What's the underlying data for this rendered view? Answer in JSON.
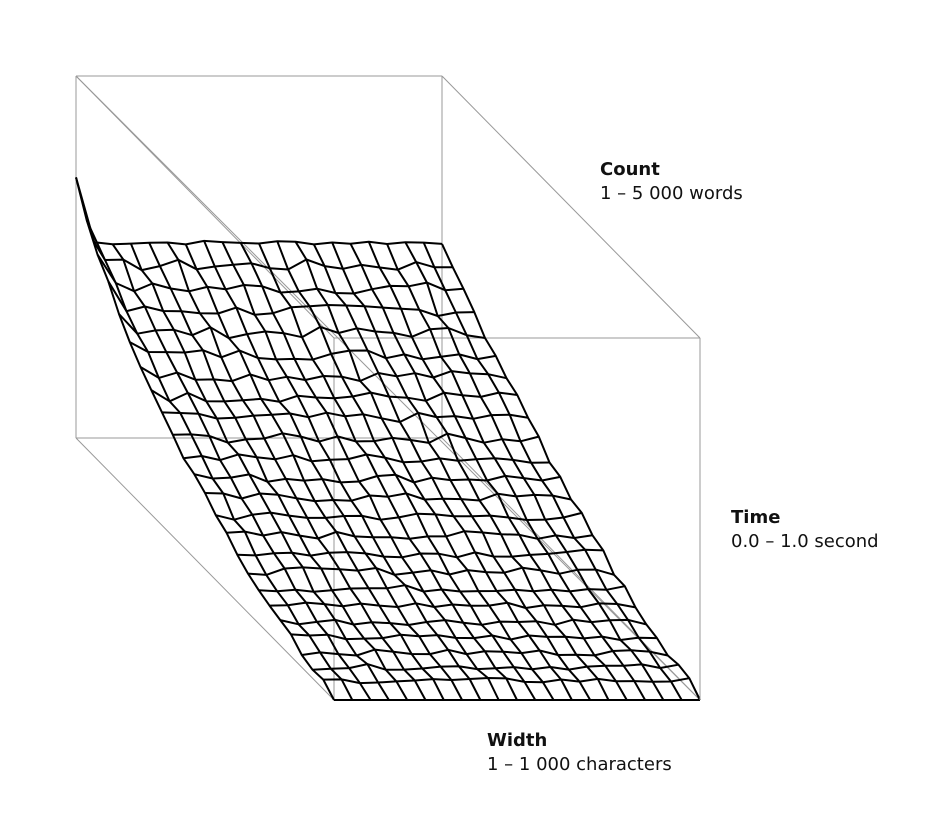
{
  "chart_data": {
    "type": "surface",
    "grid": false,
    "legend": "none",
    "axes": {
      "count": {
        "name": "Count",
        "range_label": "1 – 5 000 words",
        "range": [
          1,
          5000
        ]
      },
      "time": {
        "name": "Time",
        "range_label": "0.0 – 1.0 second",
        "range": [
          0.0,
          1.0
        ]
      },
      "width": {
        "name": "Width",
        "range_label": "1 – 1 000 characters",
        "range": [
          1,
          1000
        ]
      }
    },
    "colors": {
      "surface_line": "#000000",
      "box_line": "#999999",
      "background": "#ffffff"
    }
  }
}
